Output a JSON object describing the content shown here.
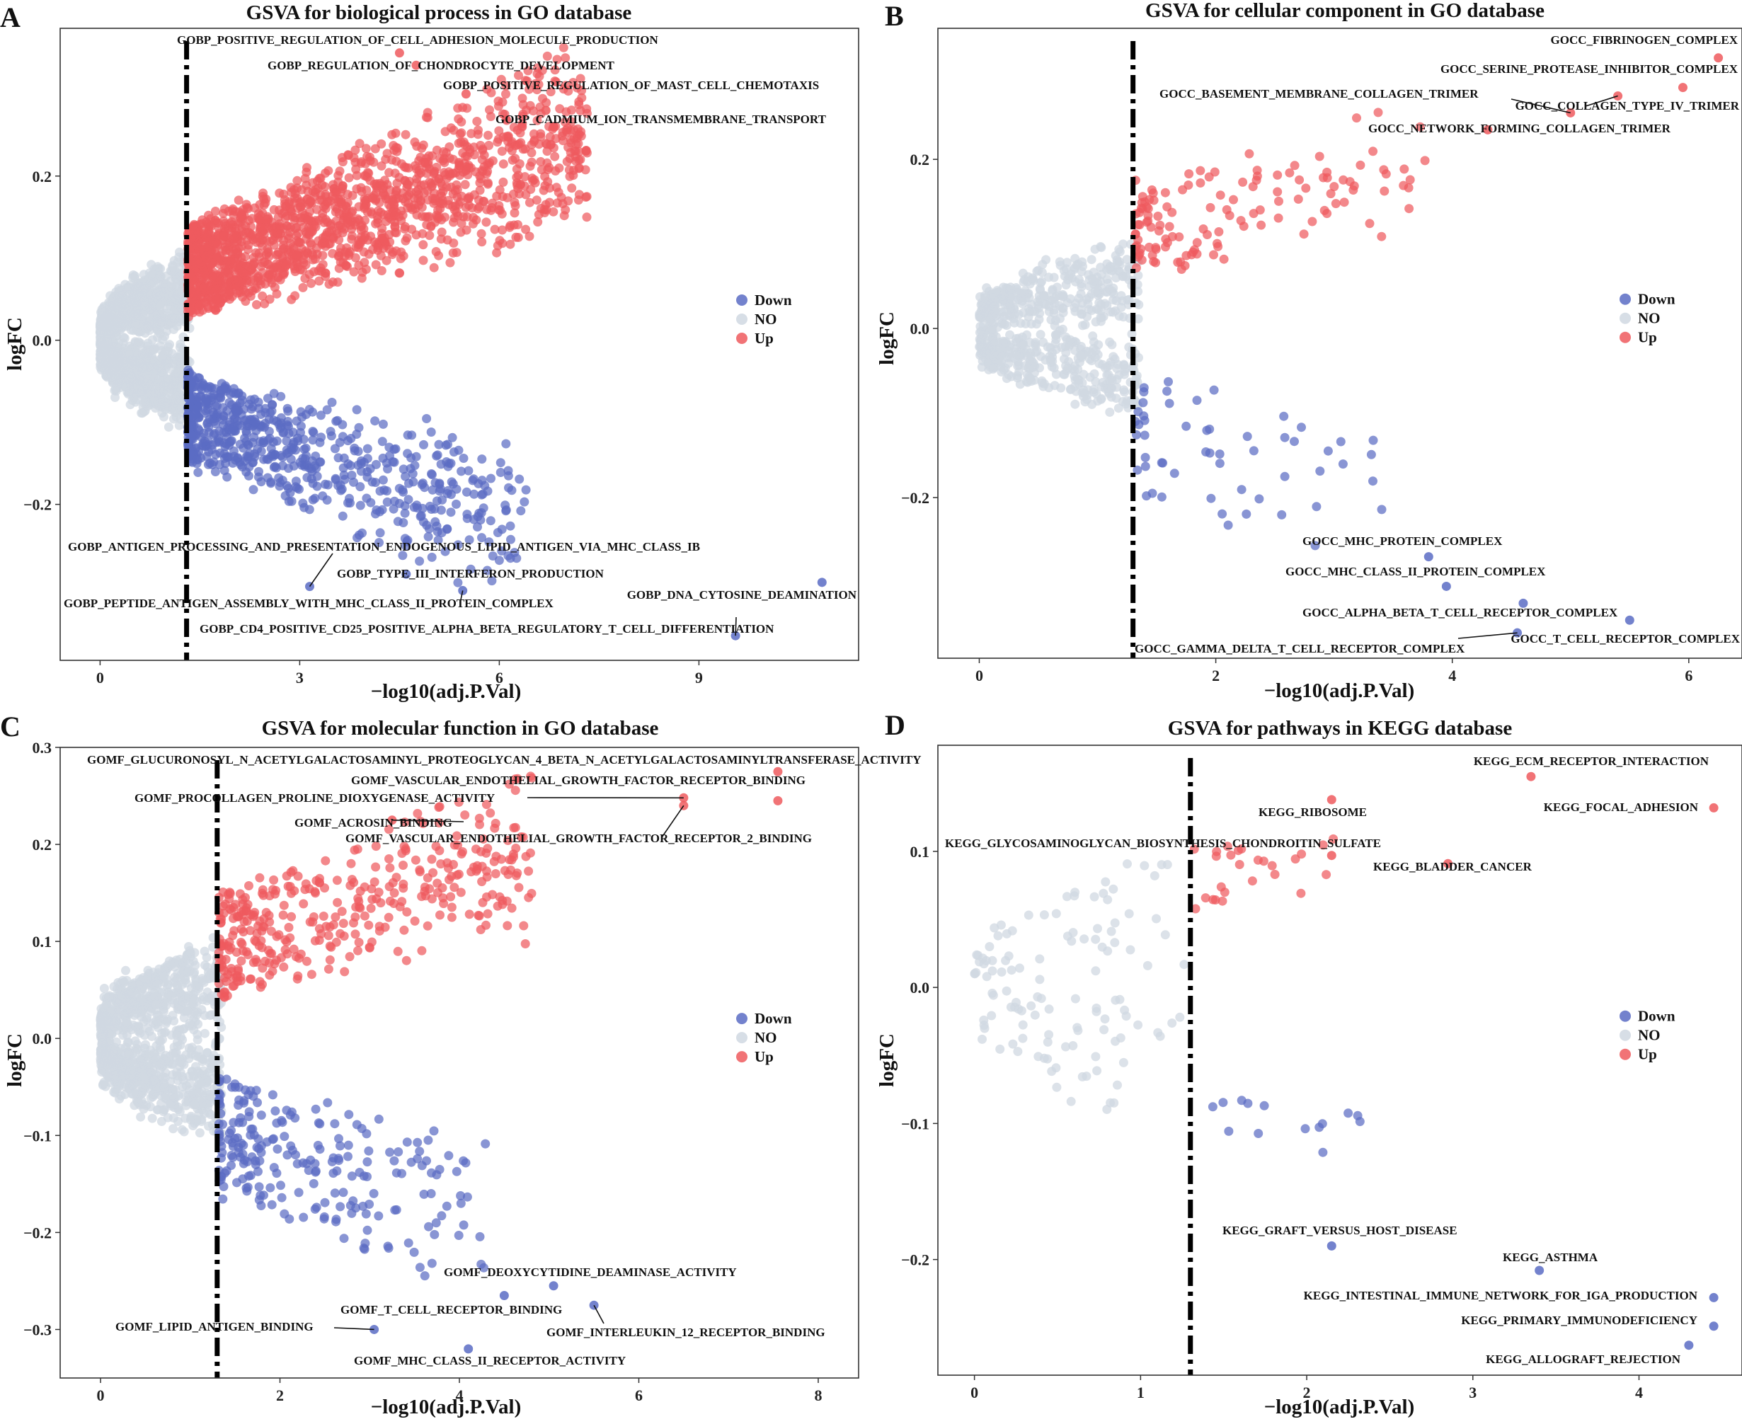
{
  "figure": {
    "colors": {
      "down": "#5b6cc4",
      "no": "#d0d8e2",
      "up": "#ee5a5e"
    }
  },
  "chart_data": [
    {
      "panel": "A",
      "type": "scatter",
      "title": "GSVA for biological process in GO database",
      "xlabel": "−log10(adj.P.Val)",
      "ylabel": "logFC",
      "xlim": [
        -0.6,
        11.4
      ],
      "ylim": [
        -0.39,
        0.38
      ],
      "xticks": [
        0,
        3,
        6,
        9
      ],
      "yticks": [
        -0.2,
        0.0,
        0.2
      ],
      "ytick_labels": [
        "−0.2",
        "0.0",
        "0.2"
      ],
      "threshold_x": 1.3,
      "legend": [
        "Down",
        "NO",
        "Up"
      ],
      "legend_position": "right",
      "cloud": {
        "n_no": 1300,
        "n_up": 1600,
        "n_down": 700,
        "no_xmax": 1.35,
        "up_lo": 0.025,
        "up_hi": 0.13,
        "down_lo": -0.035,
        "down_hi": -0.14,
        "xspan": 6.0,
        "slope": 0.028,
        "spread": 0.055
      },
      "points": [
        {
          "label": "GOBP_POSITIVE_REGULATION_OF_CELL_ADHESION_MOLECULE_PRODUCTION",
          "x": 4.5,
          "y": 0.35,
          "group": "Up"
        },
        {
          "label": "GOBP_REGULATION_OF_CHONDROCYTE_DEVELOPMENT",
          "x": 4.75,
          "y": 0.335,
          "group": "Up"
        },
        {
          "label": "GOBP_POSITIVE_REGULATION_OF_MAST_CELL_CHEMOTAXIS",
          "x": 5.5,
          "y": 0.3,
          "group": "Up"
        },
        {
          "label": "GOBP_CADMIUM_ION_TRANSMEMBRANE_TRANSPORT",
          "x": 6.7,
          "y": 0.28,
          "group": "Up"
        },
        {
          "label": "GOBP_ANTIGEN_PROCESSING_AND_PRESENTATION_ENDOGENOUS_LIPID_ANTIGEN_VIA_MHC_CLASS_IB",
          "x": 3.15,
          "y": -0.3,
          "group": "Down"
        },
        {
          "label": "GOBP_TYPE_III_INTERFERON_PRODUCTION",
          "x": 4.6,
          "y": -0.285,
          "group": "Down"
        },
        {
          "label": "GOBP_PEPTIDE_ANTIGEN_ASSEMBLY_WITH_MHC_CLASS_II_PROTEIN_COMPLEX",
          "x": 5.45,
          "y": -0.305,
          "group": "Down"
        },
        {
          "label": "GOBP_DNA_CYTOSINE_DEAMINATION",
          "x": 10.85,
          "y": -0.295,
          "group": "Down"
        },
        {
          "label": "GOBP_CD4_POSITIVE_CD25_POSITIVE_ALPHA_BETA_REGULATORY_T_CELL_DIFFERENTIATION",
          "x": 9.55,
          "y": -0.36,
          "group": "Down"
        }
      ]
    },
    {
      "panel": "B",
      "type": "scatter",
      "title": "GSVA for cellular component in GO database",
      "xlabel": "−log10(adj.P.Val)",
      "ylabel": "logFC",
      "xlim": [
        -0.35,
        6.45
      ],
      "ylim": [
        -0.39,
        0.355
      ],
      "xticks": [
        0,
        2,
        4,
        6
      ],
      "yticks": [
        -0.2,
        0.0,
        0.2
      ],
      "ytick_labels": [
        "−0.2",
        "0.0",
        "0.2"
      ],
      "threshold_x": 1.3,
      "legend": [
        "Down",
        "NO",
        "Up"
      ],
      "legend_position": "right",
      "cloud": {
        "n_no": 650,
        "n_up": 130,
        "n_down": 55,
        "no_xmax": 1.35,
        "up_lo": 0.06,
        "up_hi": 0.16,
        "down_lo": -0.05,
        "down_hi": -0.2,
        "xspan": 2.5,
        "slope": 0.03,
        "spread": 0.06
      },
      "points": [
        {
          "label": "GOCC_FIBRINOGEN_COMPLEX",
          "x": 6.25,
          "y": 0.32,
          "group": "Up"
        },
        {
          "label": "GOCC_SERINE_PROTEASE_INHIBITOR_COMPLEX",
          "x": 5.95,
          "y": 0.285,
          "group": "Up"
        },
        {
          "label": "GOCC_BASEMENT_MEMBRANE_COLLAGEN_TRIMER",
          "x": 5.0,
          "y": 0.255,
          "group": "Up"
        },
        {
          "label": "GOCC_COLLAGEN_TYPE_IV_TRIMER",
          "x": 5.4,
          "y": 0.275,
          "group": "Up"
        },
        {
          "label": "GOCC_NETWORK_FORMING_COLLAGEN_TRIMER",
          "x": 4.3,
          "y": 0.235,
          "group": "Up"
        },
        {
          "label": "GOCC_MHC_PROTEIN_COMPLEX",
          "x": 3.8,
          "y": -0.27,
          "group": "Down"
        },
        {
          "label": "GOCC_MHC_CLASS_II_PROTEIN_COMPLEX",
          "x": 3.95,
          "y": -0.305,
          "group": "Down"
        },
        {
          "label": "GOCC_ALPHA_BETA_T_CELL_RECEPTOR_COMPLEX",
          "x": 4.6,
          "y": -0.325,
          "group": "Down"
        },
        {
          "label": "GOCC_GAMMA_DELTA_T_CELL_RECEPTOR_COMPLEX",
          "x": 4.55,
          "y": -0.36,
          "group": "Down"
        },
        {
          "label": "GOCC_T_CELL_RECEPTOR_COMPLEX",
          "x": 5.5,
          "y": -0.345,
          "group": "Down"
        }
      ]
    },
    {
      "panel": "C",
      "type": "scatter",
      "title": "GSVA for molecular function in GO database",
      "xlabel": "−log10(adj.P.Val)",
      "ylabel": "logFC",
      "xlim": [
        -0.45,
        8.45
      ],
      "ylim": [
        -0.35,
        0.3
      ],
      "xticks": [
        0,
        2,
        4,
        6,
        8
      ],
      "yticks": [
        -0.3,
        -0.2,
        -0.1,
        0.0,
        0.1,
        0.2,
        0.3
      ],
      "ytick_labels": [
        "−0.3",
        "−0.2",
        "−0.1",
        "0.0",
        "0.1",
        "0.2",
        "0.3"
      ],
      "threshold_x": 1.3,
      "legend": [
        "Down",
        "NO",
        "Up"
      ],
      "legend_position": "right",
      "cloud": {
        "n_no": 1000,
        "n_up": 380,
        "n_down": 230,
        "no_xmax": 1.35,
        "up_lo": 0.035,
        "up_hi": 0.14,
        "down_lo": -0.035,
        "down_hi": -0.15,
        "xspan": 3.5,
        "slope": 0.03,
        "spread": 0.055
      },
      "points": [
        {
          "label": "GOMF_GLUCURONOSYL_N_ACETYLGALACTOSAMINYL_PROTEOGLYCAN_4_BETA_N_ACETYLGALACTOSAMINYLTRANSFERASE_ACTIVITY",
          "x": 7.55,
          "y": 0.275,
          "group": "Up"
        },
        {
          "label": "GOMF_VASCULAR_ENDOTHELIAL_GROWTH_FACTOR_RECEPTOR_BINDING",
          "x": 7.55,
          "y": 0.245,
          "group": "Up"
        },
        {
          "label": "GOMF_PROCOLLAGEN_PROLINE_DIOXYGENASE_ACTIVITY",
          "x": 6.5,
          "y": 0.248,
          "group": "Up"
        },
        {
          "label": "GOMF_ACROSIN_BINDING",
          "x": 3.25,
          "y": 0.225,
          "group": "Up"
        },
        {
          "label": "GOMF_VASCULAR_ENDOTHELIAL_GROWTH_FACTOR_RECEPTOR_2_BINDING",
          "x": 6.5,
          "y": 0.24,
          "group": "Up"
        },
        {
          "label": "GOMF_DEOXYCYTIDINE_DEAMINASE_ACTIVITY",
          "x": 5.05,
          "y": -0.255,
          "group": "Down"
        },
        {
          "label": "GOMF_T_CELL_RECEPTOR_BINDING",
          "x": 4.5,
          "y": -0.265,
          "group": "Down"
        },
        {
          "label": "GOMF_INTERLEUKIN_12_RECEPTOR_BINDING",
          "x": 5.5,
          "y": -0.275,
          "group": "Down"
        },
        {
          "label": "GOMF_LIPID_ANTIGEN_BINDING",
          "x": 3.05,
          "y": -0.3,
          "group": "Down"
        },
        {
          "label": "GOMF_MHC_CLASS_II_RECEPTOR_ACTIVITY",
          "x": 4.1,
          "y": -0.32,
          "group": "Down"
        }
      ]
    },
    {
      "panel": "D",
      "type": "scatter",
      "title": "GSVA for pathways in KEGG database",
      "xlabel": "−log10(adj.P.Val)",
      "ylabel": "logFC",
      "xlim": [
        -0.22,
        4.62
      ],
      "ylim": [
        -0.285,
        0.178
      ],
      "xticks": [
        0,
        1,
        2,
        3,
        4
      ],
      "yticks": [
        -0.2,
        -0.1,
        0.0,
        0.1
      ],
      "ytick_labels": [
        "−0.2",
        "−0.1",
        "0.0",
        "0.1"
      ],
      "threshold_x": 1.3,
      "legend": [
        "Down",
        "NO",
        "Up"
      ],
      "legend_position": "right",
      "cloud": {
        "n_no": 120,
        "n_up": 26,
        "n_down": 14,
        "no_xmax": 1.28,
        "up_lo": 0.05,
        "up_hi": 0.1,
        "down_lo": -0.07,
        "down_hi": -0.1,
        "xspan": 1.2,
        "slope": 0.02,
        "spread": 0.045
      },
      "points": [
        {
          "label": "KEGG_ECM_RECEPTOR_INTERACTION",
          "x": 3.35,
          "y": 0.155,
          "group": "Up"
        },
        {
          "label": "KEGG_FOCAL_ADHESION",
          "x": 4.45,
          "y": 0.132,
          "group": "Up"
        },
        {
          "label": "KEGG_RIBOSOME",
          "x": 2.15,
          "y": 0.138,
          "group": "Up"
        },
        {
          "label": "KEGG_GLYCOSAMINOGLYCAN_BIOSYNTHESIS_CHONDROITIN_SULFATE",
          "x": 2.15,
          "y": 0.097,
          "group": "Up"
        },
        {
          "label": "KEGG_BLADDER_CANCER",
          "x": 2.85,
          "y": 0.091,
          "group": "Up"
        },
        {
          "label": "KEGG_GRAFT_VERSUS_HOST_DISEASE",
          "x": 2.15,
          "y": -0.19,
          "group": "Down"
        },
        {
          "label": "KEGG_ASTHMA",
          "x": 3.4,
          "y": -0.208,
          "group": "Down"
        },
        {
          "label": "KEGG_INTESTINAL_IMMUNE_NETWORK_FOR_IGA_PRODUCTION",
          "x": 4.45,
          "y": -0.228,
          "group": "Down"
        },
        {
          "label": "KEGG_PRIMARY_IMMUNODEFICIENCY",
          "x": 4.45,
          "y": -0.249,
          "group": "Down"
        },
        {
          "label": "KEGG_ALLOGRAFT_REJECTION",
          "x": 4.3,
          "y": -0.263,
          "group": "Down"
        }
      ]
    }
  ]
}
